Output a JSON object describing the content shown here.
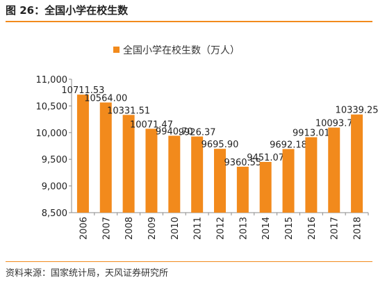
{
  "figure": {
    "title": "图 26：全国小学在校生数",
    "source": "资料来源：国家统计局，天风证券研究所"
  },
  "colors": {
    "bar": "#f28a1c",
    "rule": "#f28a1c",
    "axis": "#8a8a8a"
  },
  "chart_data": {
    "type": "bar",
    "legend": "全国小学在校生数（万人）",
    "legend_position": "top-center",
    "categories": [
      "2006",
      "2007",
      "2008",
      "2009",
      "2010",
      "2011",
      "2012",
      "2013",
      "2014",
      "2015",
      "2016",
      "2017",
      "2018"
    ],
    "values": [
      10711.53,
      10564.0,
      10331.51,
      10071.47,
      9940.7,
      9926.37,
      9695.9,
      9360.55,
      9451.07,
      9692.18,
      9913.01,
      10093.7,
      10339.25
    ],
    "data_labels": [
      "10711.53",
      "10564.00",
      "10331.51",
      "10071.47",
      "9940.70",
      "9926.37",
      "9695.90",
      "9360.55",
      "9451.07",
      "9692.18",
      "9913.01",
      "10093.7",
      "10339.25"
    ],
    "ylim": [
      8500,
      11000
    ],
    "yticks": [
      8500,
      9000,
      9500,
      10000,
      10500,
      11000
    ],
    "ytick_labels": [
      "8,500",
      "9,000",
      "9,500",
      "10,000",
      "10,500",
      "11,000"
    ],
    "grid": false
  }
}
